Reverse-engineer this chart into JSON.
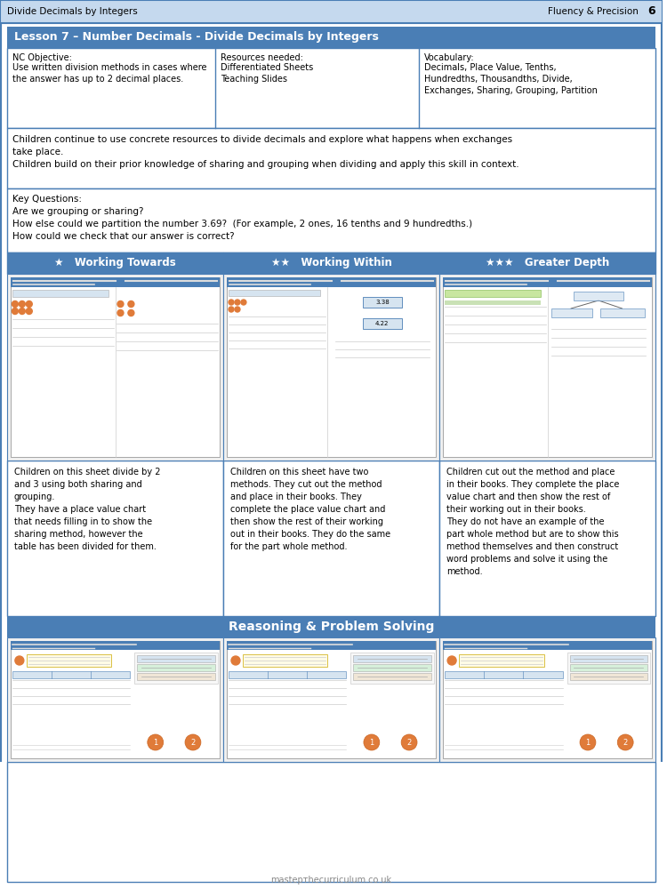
{
  "page_bg": "#ffffff",
  "border_color": "#4a7eb5",
  "header_bg": "#c5d9ee",
  "dark_blue_bg": "#4a7eb5",
  "white": "#ffffff",
  "black": "#000000",
  "light_gray": "#f2f2f2",
  "med_gray": "#cccccc",
  "title_header_text": "Divide Decimals by Integers",
  "fluency_text": "Fluency & Precision",
  "page_num": "6",
  "lesson_title": "Lesson 7 – Number Decimals - Divide Decimals by Integers",
  "nc_objective_label": "NC Objective:",
  "nc_objective_body": "Use written division methods in cases where\nthe answer has up to 2 decimal places.",
  "resources_label": "Resources needed:",
  "resources_body": "Differentiated Sheets\nTeaching Slides",
  "vocab_label": "Vocabulary:",
  "vocab_body": "Decimals, Place Value, Tenths,\nHundredths, Thousandths, Divide,\nExchanges, Sharing, Grouping, Partition",
  "context_text": "Children continue to use concrete resources to divide decimals and explore what happens when exchanges\ntake place.\nChildren build on their prior knowledge of sharing and grouping when dividing and apply this skill in context.",
  "key_questions_line1": "Key Questions:",
  "key_questions_line2": "Are we grouping or sharing?",
  "key_questions_line3": "How else could we partition the number 3.69?  (For example, 2 ones, 16 tenths and 9 hundredths.)",
  "key_questions_line4": "How could we check that our answer is correct?",
  "col1_header": "★   Working Towards",
  "col2_header": "★★   Working Within",
  "col3_header": "★★★   Greater Depth",
  "col1_desc": "Children on this sheet divide by 2\nand 3 using both sharing and\ngrouping.\nThey have a place value chart\nthat needs filling in to show the\nsharing method, however the\ntable has been divided for them.",
  "col2_desc": "Children on this sheet have two\nmethods. They cut out the method\nand place in their books. They\ncomplete the place value chart and\nthen show the rest of their working\nout in their books. They do the same\nfor the part whole method.",
  "col3_desc": "Children cut out the method and place\nin their books. They complete the place\nvalue chart and then show the rest of\ntheir working out in their books.\nThey do not have an example of the\npart whole method but are to show this\nmethod themselves and then construct\nword problems and solve it using the\nmethod.",
  "reasoning_header": "Reasoning & Problem Solving",
  "footer_text": "mastертhecurriculum.co.uk",
  "worksheet_blue": "#4a7eb5",
  "worksheet_light": "#d6e4f0",
  "worksheet_green": "#7ab648",
  "worksheet_orange": "#e07b39",
  "worksheet_red": "#c0392b"
}
